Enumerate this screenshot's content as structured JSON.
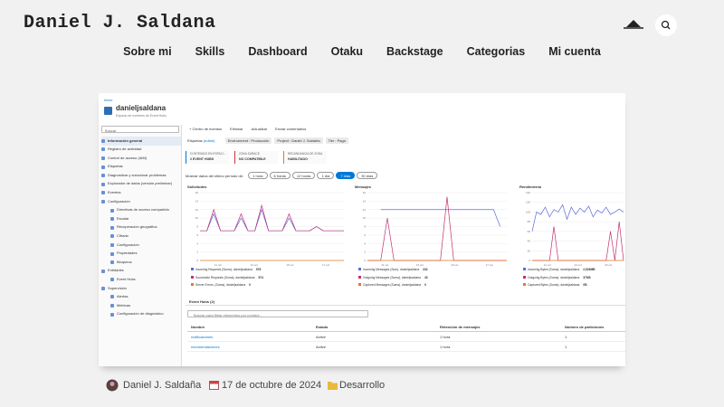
{
  "header": {
    "site_title": "Daniel J. Saldana",
    "nav": [
      "Sobre mi",
      "Skills",
      "Dashboard",
      "Otaku",
      "Backstage",
      "Categorias",
      "Mi cuenta"
    ]
  },
  "screenshot": {
    "breadcrumb": "Inicio",
    "resource_name": "danieljsaldana",
    "resource_subtitle": "Espacio de nombres de Event Hubs",
    "search_placeholder": "Buscar",
    "sidebar": [
      {
        "label": "Información general",
        "level": 0,
        "selected": true
      },
      {
        "label": "Registro de actividad",
        "level": 0
      },
      {
        "label": "Control de acceso (IAM)",
        "level": 0
      },
      {
        "label": "Etiquetas",
        "level": 0
      },
      {
        "label": "Diagnosticar y solucionar problemas",
        "level": 0
      },
      {
        "label": "Explorador de datos (versión preliminar)",
        "level": 0
      },
      {
        "label": "Eventos",
        "level": 0
      },
      {
        "label": "Configuración",
        "level": 0
      },
      {
        "label": "Directivas de acceso compartido",
        "level": 1
      },
      {
        "label": "Escalar",
        "level": 1
      },
      {
        "label": "Recuperación geográfica",
        "level": 1
      },
      {
        "label": "Cifrado",
        "level": 1
      },
      {
        "label": "Configuración",
        "level": 1
      },
      {
        "label": "Propiedades",
        "level": 1
      },
      {
        "label": "Bloqueos",
        "level": 1
      },
      {
        "label": "Entidades",
        "level": 0
      },
      {
        "label": "Event Hubs",
        "level": 1
      },
      {
        "label": "Supervisión",
        "level": 0
      },
      {
        "label": "Alertas",
        "level": 1
      },
      {
        "label": "Métricas",
        "level": 1
      },
      {
        "label": "Configuración de diagnóstico",
        "level": 1
      }
    ],
    "toolbar": [
      "+ Centro de eventos",
      "Eliminar",
      "Actualizar",
      "Enviar comentarios"
    ],
    "tags_label": "Etiquetas",
    "tags_edit": "(editar)",
    "tags": [
      "Environment : Producción",
      "Project : Daniel J. Saldaña",
      "Tier : Pago"
    ],
    "cards": [
      {
        "label": "CONTENIDO EN ESPACI...",
        "value": "2 EVENT HUBS",
        "color": "#0078d4"
      },
      {
        "label": "ZONA SURACE",
        "value": "NO COMPATIBLE",
        "color": "#d13438"
      },
      {
        "label": "REDUNDANCIA DE ZONA",
        "value": "HABILITADO",
        "color": "#e07b2a"
      }
    ],
    "period_label": "Mostrar datos del último período de:",
    "periods": [
      "1 hora",
      "6 horas",
      "12 horas",
      "1 día",
      "7 días",
      "30 días"
    ],
    "selected_period_index": 4,
    "charts": [
      {
        "title": "Solicitudes",
        "ylim": [
          0,
          16
        ],
        "yticks": [
          0,
          2,
          4,
          6,
          8,
          10,
          12,
          14,
          16
        ],
        "xlabels": [
          "11 oct",
          "13 oct",
          "15 oct",
          "17 oct"
        ],
        "series": [
          {
            "name": "Incoming Requests (Suma), danieljsaldana",
            "color": "#5b6cd9",
            "total": "576",
            "values": [
              7,
              7,
              11,
              7,
              7,
              7,
              10,
              7,
              7,
              12,
              7,
              7,
              7,
              10,
              7,
              7,
              7,
              8,
              7,
              7,
              7,
              7
            ]
          },
          {
            "name": "Successful Requests (Suma), danieljsaldana",
            "color": "#c2306f",
            "total": "574",
            "values": [
              7,
              7,
              12,
              7,
              7,
              7,
              11,
              7,
              7,
              13,
              7,
              7,
              7,
              11,
              7,
              7,
              7,
              8,
              7,
              7,
              7,
              7
            ]
          },
          {
            "name": "Server Errors. (Suma), danieljsaldana",
            "color": "#e07b2a",
            "total": "0",
            "values": [
              0,
              0,
              0,
              0,
              0,
              0,
              0,
              0,
              0,
              0,
              0,
              0,
              0,
              0,
              0,
              0,
              0,
              0,
              0,
              0,
              0,
              0
            ]
          }
        ]
      },
      {
        "title": "Mensajes",
        "ylim": [
          0,
          16
        ],
        "yticks": [
          0,
          2,
          4,
          6,
          8,
          10,
          12,
          14,
          16
        ],
        "xlabels": [
          "11 oct",
          "13 oct",
          "15 oct",
          "17 oct"
        ],
        "series": [
          {
            "name": "Incoming Messages (Sum), danieljsaldana",
            "color": "#5b6cd9",
            "total": "332",
            "values": [
              null,
              null,
              12,
              12,
              12,
              12,
              12,
              12,
              12,
              12,
              12,
              12,
              12,
              12,
              12,
              12,
              12,
              12,
              12,
              12,
              8,
              null
            ]
          },
          {
            "name": "Outgoing Messages (Suma), danieljsaldana",
            "color": "#c2306f",
            "total": "43",
            "values": [
              0,
              0,
              0,
              10,
              0,
              0,
              0,
              0,
              0,
              0,
              0,
              0,
              15,
              0,
              0,
              0,
              0,
              0,
              0,
              0,
              0,
              0
            ]
          },
          {
            "name": "Captured Messages (Suma), danieljsaldana",
            "color": "#e07b2a",
            "total": "0",
            "values": [
              0,
              0,
              0,
              0,
              0,
              0,
              0,
              0,
              0,
              0,
              0,
              0,
              0,
              0,
              0,
              0,
              0,
              0,
              0,
              0,
              0,
              0
            ]
          }
        ]
      },
      {
        "title": "Rendimiento",
        "ylim": [
          0,
          140
        ],
        "yticks": [
          0,
          20,
          40,
          60,
          80,
          100,
          120,
          140
        ],
        "xlabels": [
          "11 oct",
          "13 oct",
          "15 oct"
        ],
        "series": [
          {
            "name": "Incoming Bytes (Suma), danieljsaldana",
            "color": "#5b6cd9",
            "total": "2,526MB",
            "values": [
              60,
              100,
              95,
              110,
              90,
              105,
              100,
              115,
              85,
              110,
              95,
              108,
              100,
              112,
              90,
              104,
              98,
              110,
              95,
              100,
              106,
              100
            ]
          },
          {
            "name": "Outgoing Bytes (Suma), danieljsaldana",
            "color": "#c2306f",
            "total": "37KB",
            "values": [
              0,
              0,
              0,
              0,
              0,
              70,
              0,
              0,
              0,
              0,
              0,
              0,
              0,
              0,
              0,
              0,
              0,
              0,
              60,
              0,
              80,
              0
            ]
          },
          {
            "name": "Captured Bytes (Suma), danieljsaldana",
            "color": "#e07b2a",
            "total": "0B",
            "values": [
              0,
              0,
              0,
              0,
              0,
              0,
              0,
              0,
              0,
              0,
              0,
              0,
              0,
              0,
              0,
              0,
              0,
              0,
              0,
              0,
              0,
              0
            ]
          }
        ]
      }
    ],
    "hubs_tab": "Event Hubs (2)",
    "filter_placeholder": "Buscar para filtrar elementos por nombre...",
    "table": {
      "columns": [
        "Nombre",
        "Estado",
        "Retención de mensajes",
        "Número de particiones"
      ],
      "rows": [
        [
          "notificaciones",
          "Active",
          "1 hora",
          1
        ],
        [
          "recomendaciones",
          "Active",
          "1 hora",
          1
        ]
      ]
    }
  },
  "post_meta": {
    "author": "Daniel J. Saldaña",
    "date": "17 de octubre de 2024",
    "category": "Desarrollo"
  }
}
